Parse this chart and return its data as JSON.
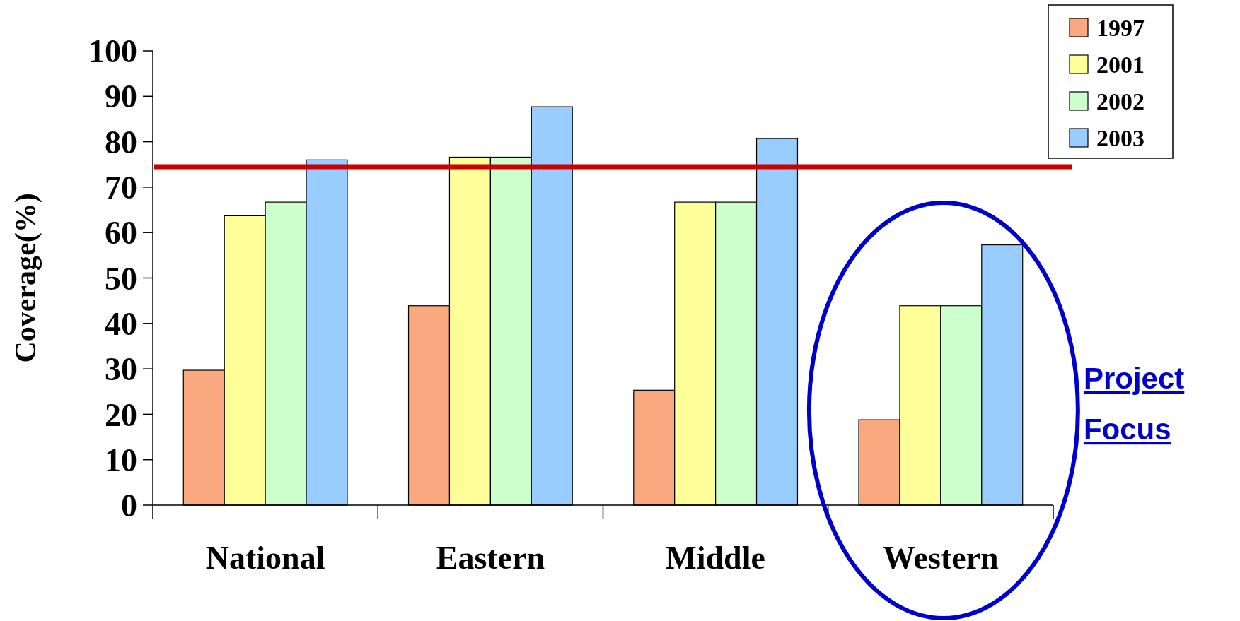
{
  "chart_data": {
    "type": "bar",
    "ylabel": "Coverage(%)",
    "categories": [
      "National",
      "Eastern",
      "Middle",
      "Western"
    ],
    "series": [
      {
        "name": "1997",
        "color": "#f9a880",
        "values": [
          29.7,
          43.9,
          25.3,
          18.8
        ]
      },
      {
        "name": "2001",
        "color": "#ffff99",
        "values": [
          63.7,
          76.6,
          66.7,
          43.9
        ]
      },
      {
        "name": "2002",
        "color": "#ccffcc",
        "values": [
          66.7,
          76.6,
          66.7,
          43.9
        ]
      },
      {
        "name": "2003",
        "color": "#99ccff",
        "values": [
          76.0,
          87.7,
          80.7,
          57.3
        ]
      }
    ],
    "ylim": [
      0,
      100
    ],
    "yticks": [
      0,
      10,
      20,
      30,
      40,
      50,
      60,
      70,
      80,
      90,
      100
    ],
    "ref_lines": [
      {
        "axis": "y",
        "value": 74.5,
        "color": "#cc0000"
      }
    ],
    "annotations": [
      "Project Focus"
    ],
    "legend": "top right",
    "grid": false
  }
}
